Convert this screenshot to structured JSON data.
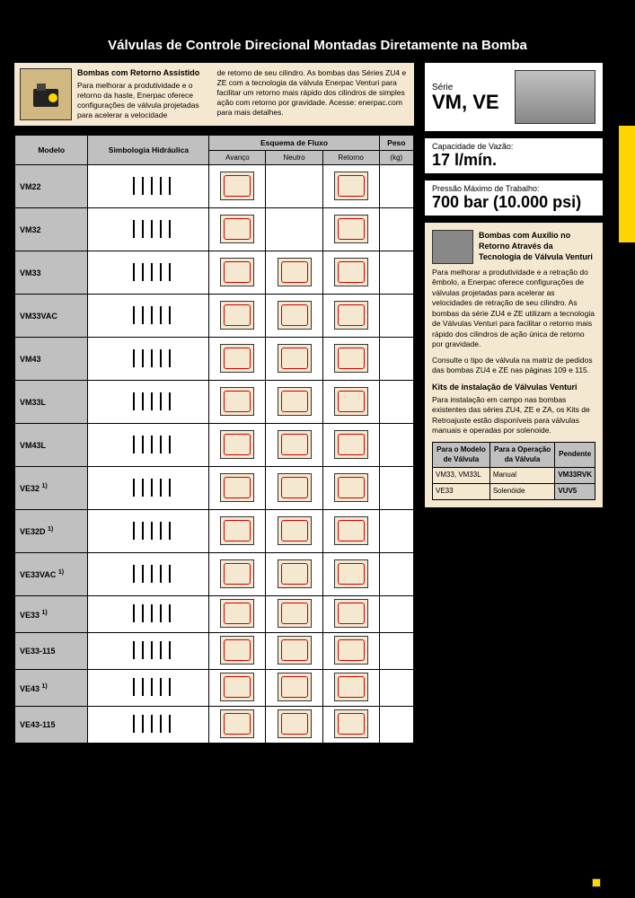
{
  "title": "Válvulas de Controle Direcional Montadas Diretamente na Bomba",
  "intro": {
    "heading": "Bombas com Retorno Assistido",
    "col1": "Para melhorar a produtividade e o retorno da haste, Enerpac oferece configurações de válvula projetadas para acelerar a velocidade",
    "col2": "de retorno de seu cilindro. As bombas das Séries ZU4 e ZE com a tecnologia da válvula Enerpac Venturi para facilitar um retorno mais rápido dos cilindros de simples ação com retorno por gravidade. Acesse: enerpac.com para mais detalhes."
  },
  "table": {
    "h_modelo": "Modelo",
    "h_simb": "Simbologia Hidráulica",
    "h_esquema": "Esquema de Fluxo",
    "h_peso": "Peso",
    "h_peso_unit": "(kg)",
    "sub_avanco": "Avanço",
    "sub_neutro": "Neutro",
    "sub_retorno": "Retorno",
    "rows": [
      {
        "m": "VM22",
        "has_neutro": false,
        "short": false
      },
      {
        "m": "VM32",
        "has_neutro": false,
        "short": false
      },
      {
        "m": "VM33",
        "has_neutro": true,
        "short": false
      },
      {
        "m": "VM33VAC",
        "has_neutro": true,
        "short": false
      },
      {
        "m": "VM43",
        "has_neutro": true,
        "short": false
      },
      {
        "m": "VM33L",
        "has_neutro": true,
        "short": false
      },
      {
        "m": "VM43L",
        "has_neutro": true,
        "short": false
      },
      {
        "m": "VE32 ",
        "sup": "1)",
        "has_neutro": true,
        "short": false
      },
      {
        "m": "VE32D ",
        "sup": "1)",
        "has_neutro": true,
        "short": false
      },
      {
        "m": "VE33VAC ",
        "sup": "1)",
        "has_neutro": true,
        "short": false
      },
      {
        "m": "VE33 ",
        "sup": "1)",
        "has_neutro": true,
        "short": true
      },
      {
        "m": "VE33-115",
        "has_neutro": true,
        "short": true
      },
      {
        "m": "VE43 ",
        "sup": "1)",
        "has_neutro": true,
        "short": true
      },
      {
        "m": "VE43-115",
        "has_neutro": true,
        "short": true
      }
    ]
  },
  "series": {
    "label": "Série",
    "value": "VM, VE"
  },
  "spec1": {
    "label": "Capacidade de Vazão:",
    "value": "17 l/mín."
  },
  "spec2": {
    "label": "Pressão Máximo de Trabalho:",
    "value": "700 bar (10.000 psi)"
  },
  "side": {
    "heading": "Bombas com Auxílio no Retorno Através da Tecnologia de Válvula Venturi",
    "p1": "Para melhorar a produtividade e a retração do êmbolo, a Enerpac oferece configurações de válvulas projetadas para acelerar as velocidades de retração de seu cilindro. As bombas da série ZU4 e ZE utilizam a tecnologia de Válvulas Venturi para facilitar o retorno mais rápido dos cilindros de ação única de retorno por gravidade.",
    "p2": "Consulte o tipo de válvula na matriz de pedidos das bombas ZU4 e ZE nas páginas 109 e 115.",
    "sec2": "Kits de instalação de Válvulas Venturi",
    "p3": "Para instalação em campo nas bombas existentes das séries ZU4, ZE e ZA, os Kits de Retroajuste estão disponíveis para válvulas manuais e operadas por solenoide."
  },
  "kit": {
    "h1": "Para o Modelo de Válvula",
    "h2": "Para a Operação da Válvula",
    "h3": "Pendente",
    "rows": [
      {
        "a": "VM33, VM33L",
        "b": "Manual",
        "c": "VM33RVK"
      },
      {
        "a": "VE33",
        "b": "Solenóide",
        "c": "VUV5"
      }
    ]
  }
}
